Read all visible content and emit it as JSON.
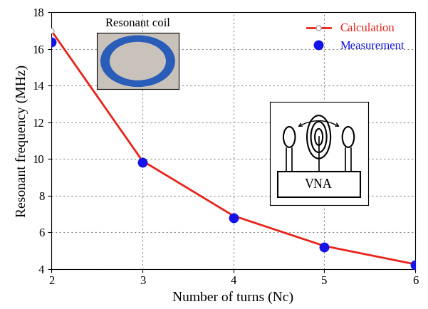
{
  "chart_data": {
    "type": "line",
    "x_label": "Number of turns (Nc)",
    "y_label": "Resonant frequency (MHz)",
    "x": [
      2,
      3,
      4,
      5,
      6
    ],
    "series": [
      {
        "name": "Calculation",
        "color": "#e8231a",
        "values": [
          17.0,
          9.9,
          6.9,
          5.25,
          4.25
        ],
        "marker": "o",
        "line_style": "solid"
      },
      {
        "name": "Measurement",
        "color": "#1414e6",
        "values": [
          16.4,
          9.8,
          6.8,
          5.2,
          4.2
        ],
        "marker": "o",
        "line_style": "none"
      }
    ],
    "xlim": [
      2,
      6
    ],
    "xticks": [
      2,
      3,
      4,
      5,
      6
    ],
    "ylim": [
      4,
      18
    ],
    "yticks": [
      4,
      6,
      8,
      10,
      12,
      14,
      16,
      18
    ],
    "grid": true,
    "legend": "upper right",
    "annotations": [
      "Resonant coil",
      "VNA"
    ]
  }
}
